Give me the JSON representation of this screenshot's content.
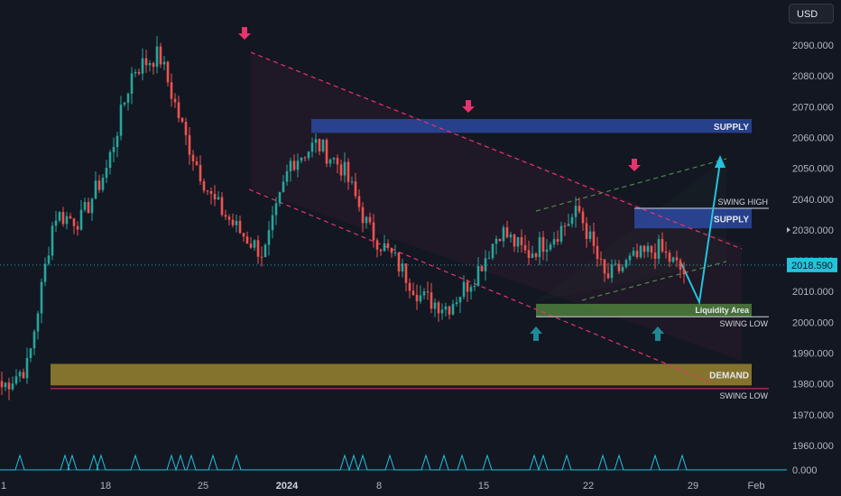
{
  "currency": "USD",
  "chart_data": {
    "type": "candlestick",
    "y_ticks": [
      2090,
      2080,
      2070,
      2060,
      2050,
      2040,
      2030,
      2020,
      2010,
      2000,
      1990,
      1980,
      1970,
      1960
    ],
    "y_tick_labels": [
      "2090.000",
      "2080.000",
      "2070.000",
      "2060.000",
      "2050.000",
      "2040.000",
      "2030.000",
      "2020.000",
      "2010.000",
      "2000.000",
      "1990.000",
      "1980.000",
      "1970.000",
      "1960.000"
    ],
    "indicator_zero_label": "0.000",
    "x_labels": [
      "1",
      "18",
      "25",
      "2024",
      "8",
      "15",
      "22",
      "29",
      "Feb"
    ],
    "current_price": 2018.59,
    "current_price_label": "2018.590",
    "series_key_prices": [
      1979,
      1986,
      2035,
      2033,
      2050,
      2082,
      2087,
      2060,
      2040,
      2030,
      2022,
      2052,
      2058,
      2050,
      2030,
      2020,
      2008,
      2005,
      2015,
      2030,
      2022,
      2028,
      2036,
      2014,
      2020,
      2024,
      2016
    ],
    "zones": [
      {
        "label": "SUPPLY",
        "top": 2066.0,
        "bottom": 2061.5
      },
      {
        "label": "SUPPLY",
        "top": 2037.0,
        "bottom": 2030.5
      },
      {
        "label": "Liquidity Area",
        "top": 2006.0,
        "bottom": 2001.8
      },
      {
        "label": "DEMAND",
        "top": 1986.5,
        "bottom": 1979.5
      }
    ],
    "levels": [
      {
        "label": "SWING HIGH",
        "price": 2037.0
      },
      {
        "label": "SWING LOW",
        "price": 2001.8
      },
      {
        "label": "SWING LOW",
        "price": 1978.5
      }
    ],
    "colors": {
      "background": "#131722",
      "bullish": "#26a69a",
      "bearish": "#ef5350",
      "supply": "#2f4fb0",
      "liquidity": "#4f7f3c",
      "demand": "#b59b32",
      "channel": "#e8336c",
      "rising_channel": "#4a8a4a",
      "projection": "#22c3dd",
      "arrow_down": "#e8336c",
      "arrow_up": "#1f8a96",
      "indicator": "#22c3dd"
    }
  }
}
